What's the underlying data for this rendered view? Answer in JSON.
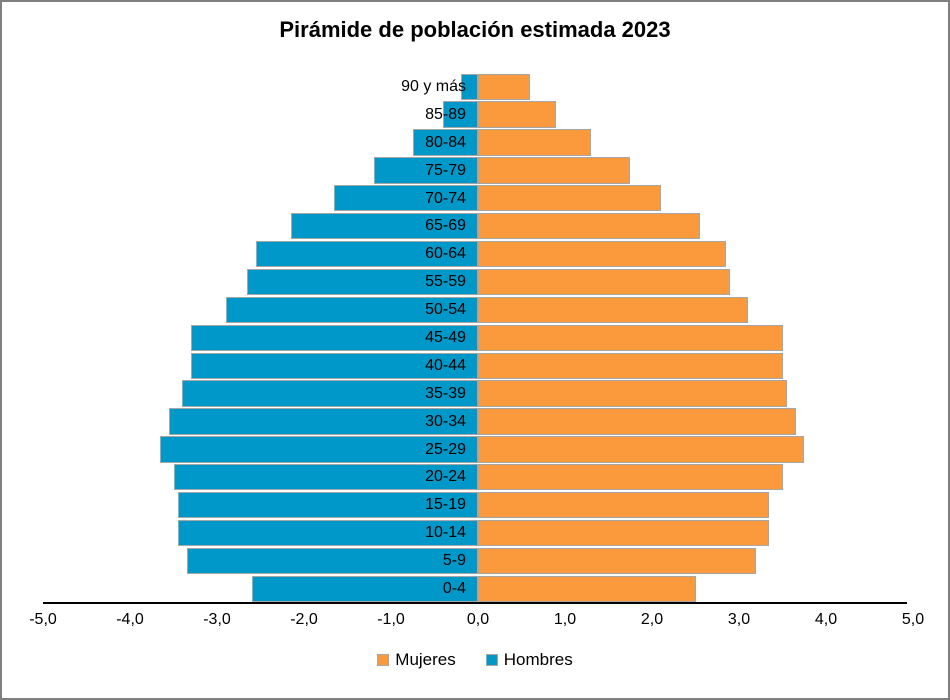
{
  "title": "Pirámide de población estimada 2023",
  "colors": {
    "male": "#0098c8",
    "female": "#fb9a3c",
    "bar_border": "#a6a6a6",
    "axis": "#000000",
    "frame_border": "#7f7f7f",
    "text": "#000000"
  },
  "chart_data": {
    "type": "bar",
    "subtype": "population-pyramid",
    "title": "Pirámide de población estimada 2023",
    "xlabel": "",
    "ylabel": "",
    "xlim": [
      -5.0,
      5.0
    ],
    "grid": false,
    "legend_position": "bottom",
    "x_ticks": [
      "-5,0",
      "-4,0",
      "-3,0",
      "-2,0",
      "-1,0",
      "0,0",
      "1,0",
      "2,0",
      "3,0",
      "4,0",
      "5,0"
    ],
    "categories": [
      "90 y más",
      "85-89",
      "80-84",
      "75-79",
      "70-74",
      "65-69",
      "60-64",
      "55-59",
      "50-54",
      "45-49",
      "40-44",
      "35-39",
      "30-34",
      "25-29",
      "20-24",
      "15-19",
      "10-14",
      "5-9",
      "0-4"
    ],
    "series": [
      {
        "name": "Mujeres",
        "color": "#fb9a3c",
        "values": [
          0.6,
          0.9,
          1.3,
          1.75,
          2.1,
          2.55,
          2.85,
          2.9,
          3.1,
          3.5,
          3.5,
          3.55,
          3.65,
          3.75,
          3.5,
          3.35,
          3.35,
          3.2,
          2.5
        ]
      },
      {
        "name": "Hombres",
        "color": "#0098c8",
        "values": [
          -0.2,
          -0.4,
          -0.75,
          -1.2,
          -1.65,
          -2.15,
          -2.55,
          -2.65,
          -2.9,
          -3.3,
          -3.3,
          -3.4,
          -3.55,
          -3.65,
          -3.5,
          -3.45,
          -3.45,
          -3.35,
          -2.6
        ]
      }
    ]
  },
  "legend": {
    "items": [
      {
        "label": "Mujeres"
      },
      {
        "label": "Hombres"
      }
    ]
  }
}
